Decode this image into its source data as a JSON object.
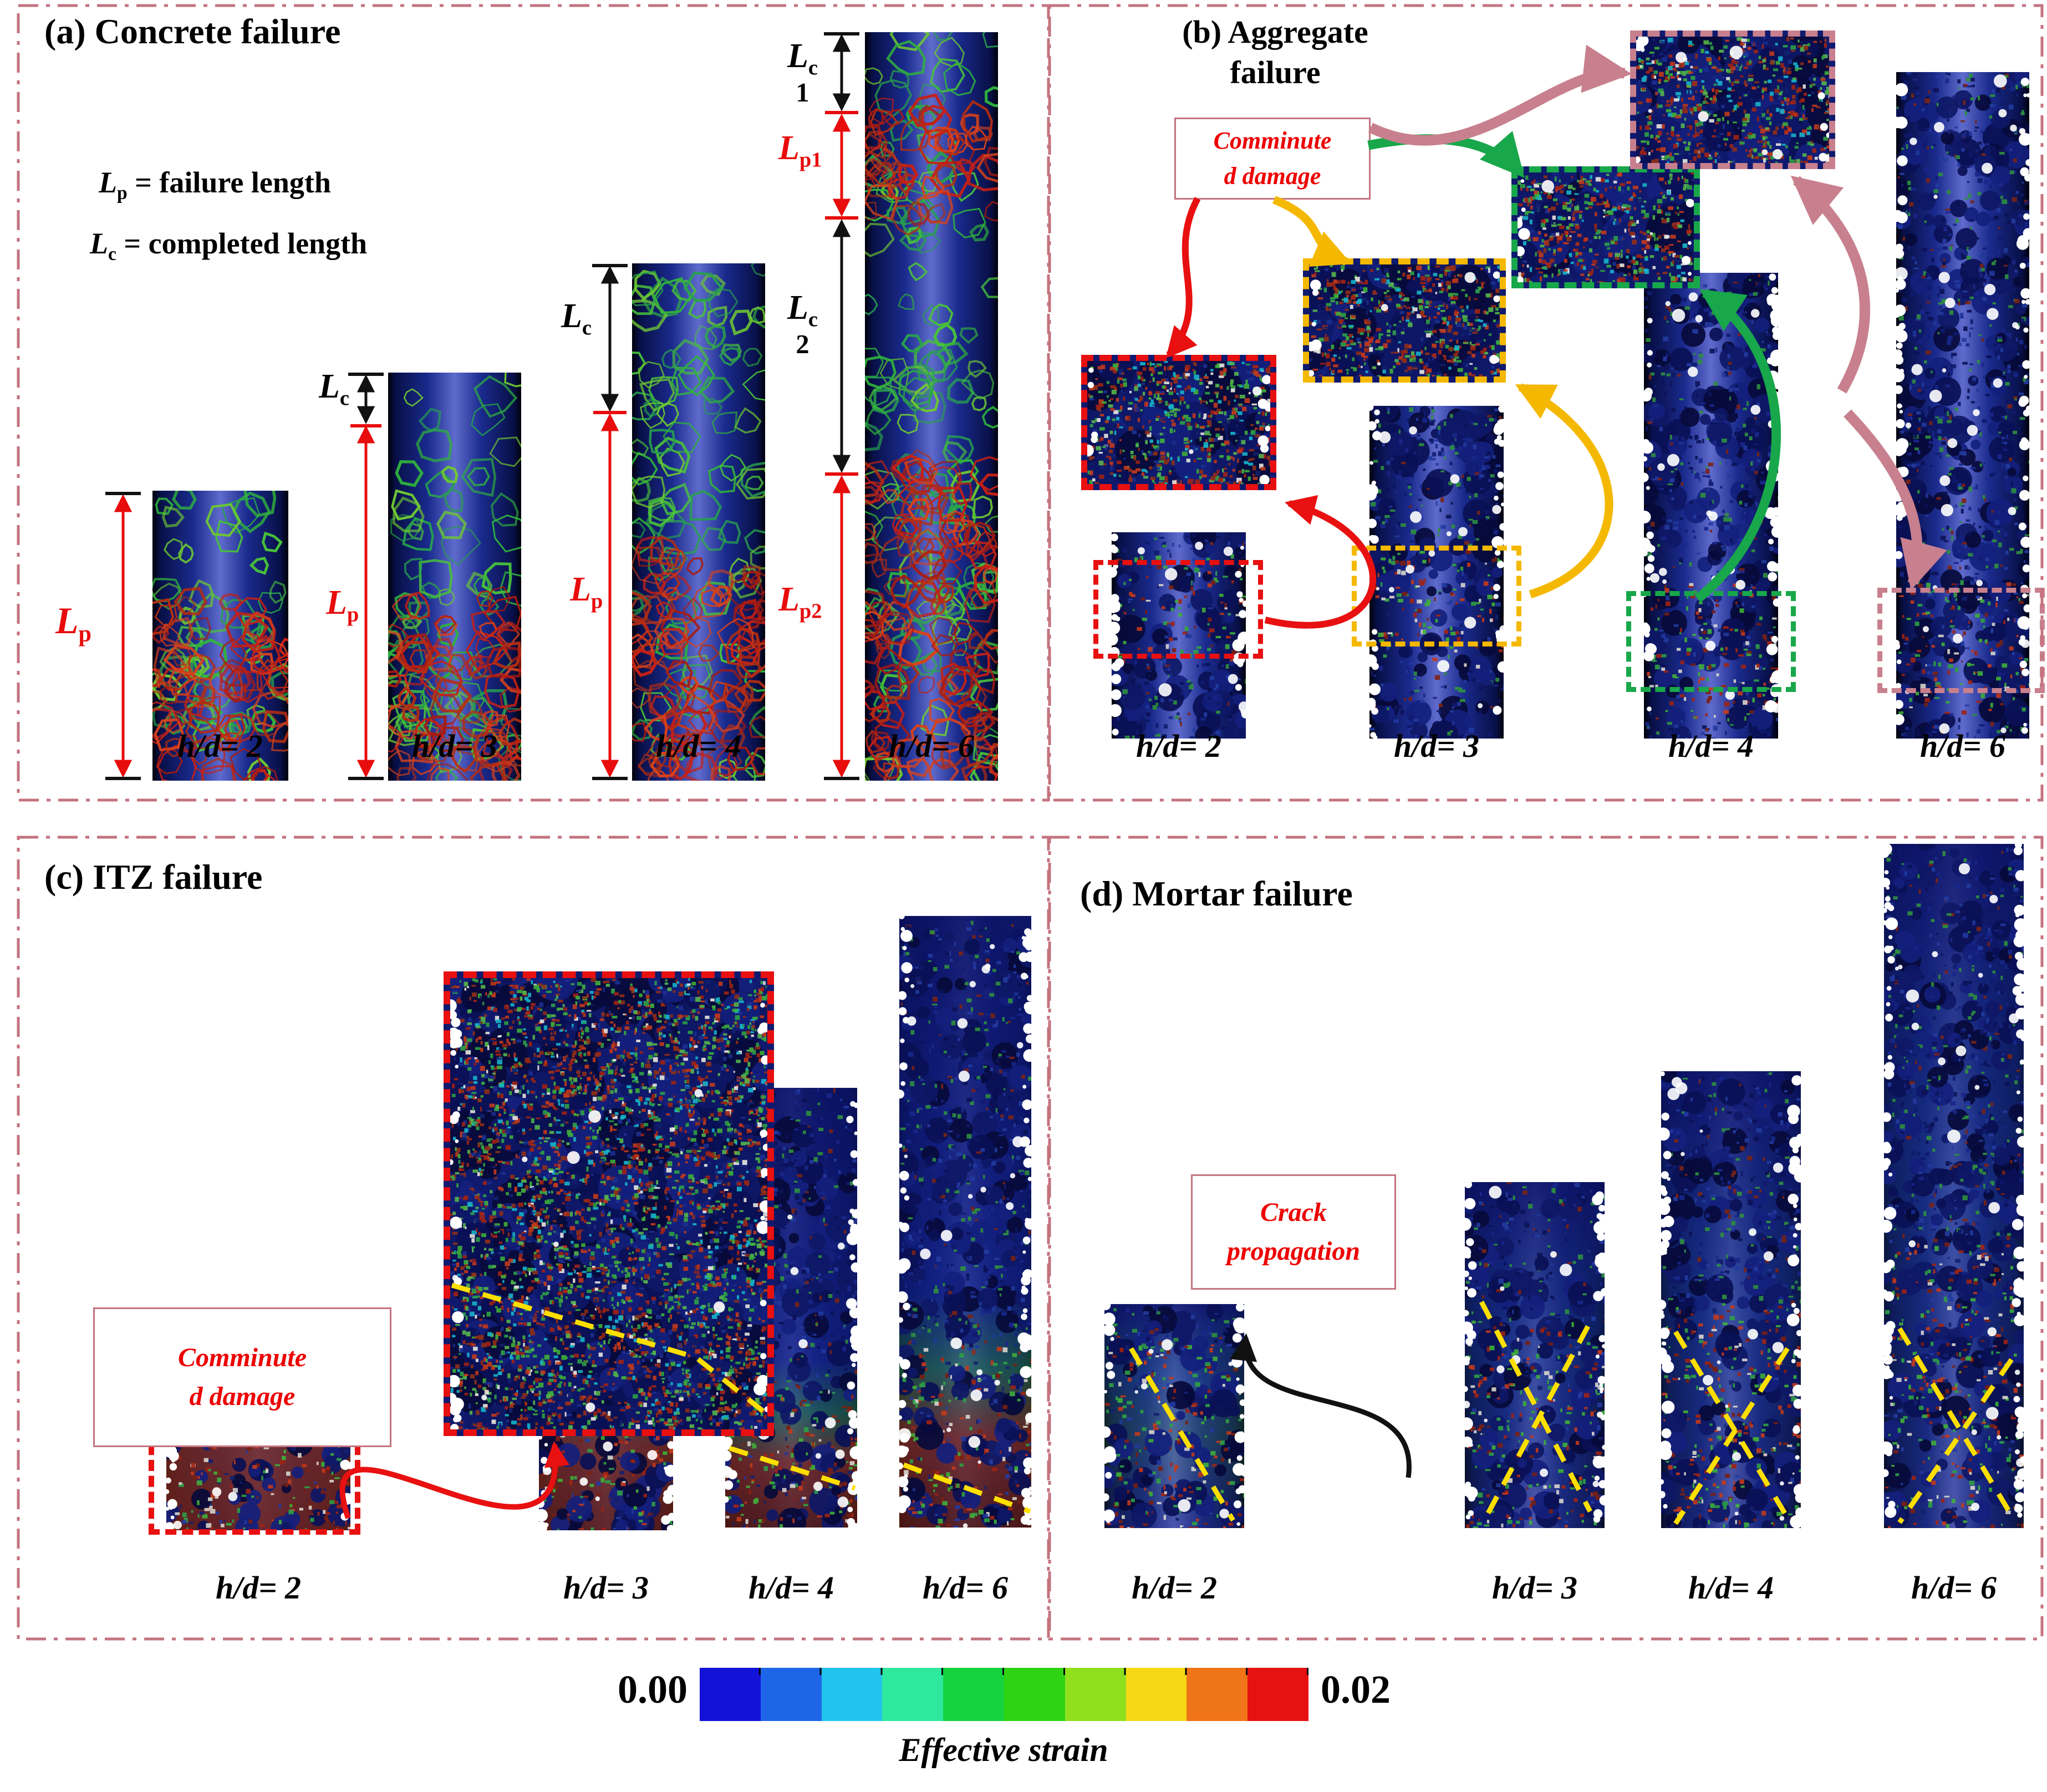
{
  "panels": {
    "a": {
      "title": "(a) Concrete failure",
      "legend": [
        {
          "sym": "L",
          "sub": "p",
          "text": " = failure length"
        },
        {
          "sym": "L",
          "sub": "c",
          "text": " = completed length"
        }
      ],
      "annotations": [
        {
          "id": "lp-hd2",
          "sym": "L",
          "sub": "p",
          "num": ""
        },
        {
          "id": "lc-hd3",
          "sym": "L",
          "sub": "c",
          "num": ""
        },
        {
          "id": "lp-hd3",
          "sym": "L",
          "sub": "p",
          "num": ""
        },
        {
          "id": "lc-hd4",
          "sym": "L",
          "sub": "c",
          "num": ""
        },
        {
          "id": "lp-hd4",
          "sym": "L",
          "sub": "p",
          "num": ""
        },
        {
          "id": "lc1-hd6",
          "sym": "L",
          "sub": "c",
          "num": "1"
        },
        {
          "id": "lp1-hd6",
          "sym": "L",
          "sub": "p1",
          "num": ""
        },
        {
          "id": "lc2-hd6",
          "sym": "L",
          "sub": "c",
          "num": "2"
        },
        {
          "id": "lp2-hd6",
          "sym": "L",
          "sub": "p2",
          "num": ""
        }
      ],
      "specimens": [
        {
          "label": "h/d= 2"
        },
        {
          "label": "h/d= 3"
        },
        {
          "label": "h/d= 4"
        },
        {
          "label": "h/d= 6"
        }
      ]
    },
    "b": {
      "title_line1": "(b) Aggregate",
      "title_line2": "failure",
      "callout": [
        "Comminute",
        "d damage"
      ],
      "specimens": [
        {
          "label": "h/d= 2"
        },
        {
          "label": "h/d= 3"
        },
        {
          "label": "h/d= 4"
        },
        {
          "label": "h/d= 6"
        }
      ]
    },
    "c": {
      "title": "(c) ITZ failure",
      "callout": [
        "Comminute",
        "d damage"
      ],
      "specimens": [
        {
          "label": "h/d= 2"
        },
        {
          "label": "h/d= 3"
        },
        {
          "label": "h/d= 4"
        },
        {
          "label": "h/d= 6"
        }
      ]
    },
    "d": {
      "title": "(d) Mortar failure",
      "callout": [
        "Crack",
        "propagation"
      ],
      "specimens": [
        {
          "label": "h/d= 2"
        },
        {
          "label": "h/d= 3"
        },
        {
          "label": "h/d= 4"
        },
        {
          "label": "h/d= 6"
        }
      ]
    }
  },
  "colorbar": {
    "min_label": "0.00",
    "max_label": "0.02",
    "title": "Effective strain",
    "colors": [
      "#1212d9",
      "#1e66e8",
      "#22c4ee",
      "#2ee89e",
      "#15d23f",
      "#2ed414",
      "#90e01e",
      "#f6d914",
      "#f07418",
      "#e61212"
    ]
  },
  "accent_colors": {
    "panel_border": "#c4737f",
    "callout_text": "#ee0000",
    "highlight_red": "#e81010",
    "highlight_yellow": "#f5b800",
    "highlight_green": "#18a74a",
    "highlight_pink": "#c8808e",
    "crack_line_yellow": "#ffdf00",
    "measure_red": "#e80c0c",
    "measure_black": "#111111"
  }
}
